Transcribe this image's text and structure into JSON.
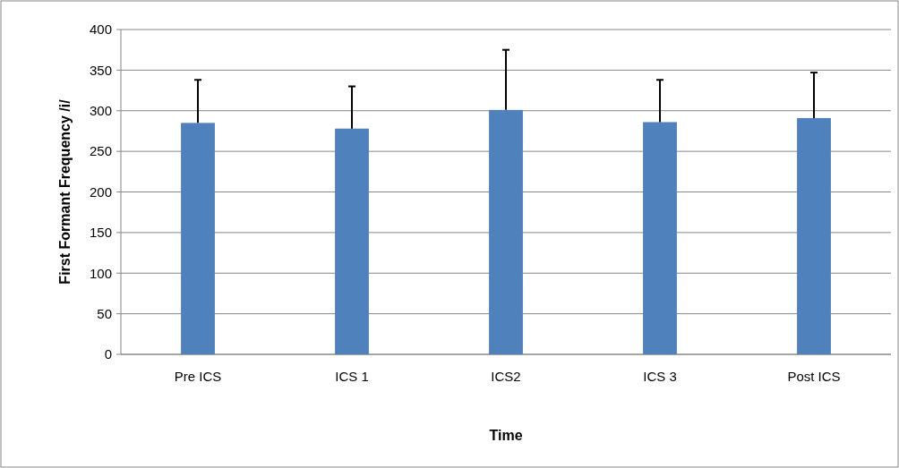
{
  "chart_data": {
    "type": "bar",
    "xlabel": "Time",
    "ylabel": "First Formant Frequency /i/",
    "categories": [
      "Pre ICS",
      "ICS 1",
      "ICS2",
      "ICS 3",
      "Post ICS"
    ],
    "values": [
      285,
      278,
      301,
      286,
      291
    ],
    "color": "#4f81bd",
    "errors": [
      [
        285,
        338
      ],
      [
        278,
        330
      ],
      [
        301,
        375
      ],
      [
        286,
        338
      ],
      [
        291,
        347
      ]
    ],
    "ylim": [
      0,
      400
    ],
    "yticks": [
      0,
      50,
      100,
      150,
      200,
      250,
      300,
      350,
      400
    ],
    "grid": "y"
  }
}
